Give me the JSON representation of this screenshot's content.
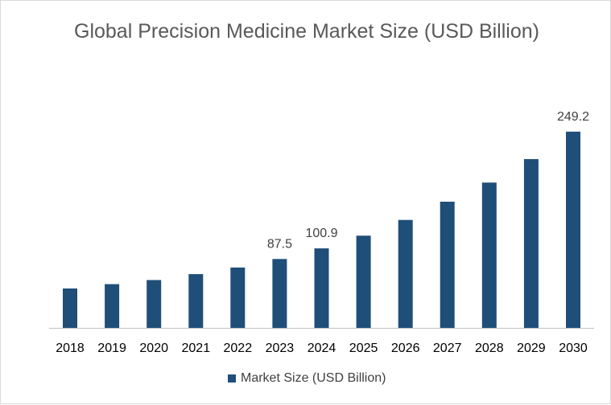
{
  "chart_data": {
    "type": "bar",
    "title": "Global Precision Medicine Market Size (USD Billion)",
    "categories": [
      "2018",
      "2019",
      "2020",
      "2021",
      "2022",
      "2023",
      "2024",
      "2025",
      "2026",
      "2027",
      "2028",
      "2029",
      "2030"
    ],
    "series": [
      {
        "name": "Market Size (USD Billion)",
        "color": "#1f4e79",
        "values": [
          50.0,
          55.5,
          60.7,
          68.3,
          76.6,
          87.5,
          100.9,
          117.0,
          137.0,
          160.2,
          184.5,
          214.3,
          249.2
        ]
      }
    ],
    "data_labels": {
      "2023": "87.5",
      "2024": "100.9",
      "2030": "249.2"
    },
    "xlabel": "",
    "ylabel": "",
    "ylim": [
      0,
      280
    ],
    "grid": false,
    "legend_position": "bottom"
  }
}
